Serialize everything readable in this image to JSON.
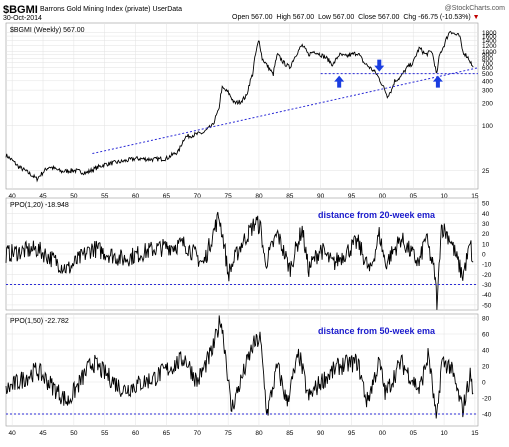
{
  "header": {
    "symbol": "$BGMI",
    "description": "Barrons Gold Mining Index (private) UserData",
    "date": "30-Oct-2014",
    "open_label": "Open",
    "open": "567.00",
    "high_label": "High",
    "high": "567.00",
    "low_label": "Low",
    "low": "567.00",
    "close_label": "Close",
    "close": "567.00",
    "chg_label": "Chg",
    "chg": "-66.75 (-10.53%)",
    "site": "@StockCharts.com"
  },
  "colors": {
    "series": "#000000",
    "trendline": "#2b2bd6",
    "annotation": "#1a1acc",
    "arrows": "#1a3de0",
    "grid": "#e2e2e2"
  },
  "chart_data": [
    {
      "type": "line",
      "title": "$BGMI (Weekly) 567.00",
      "y_scale": "log",
      "x_range": [
        1939,
        2015.5
      ],
      "ylim": [
        14,
        2400
      ],
      "y_ticks": [
        25,
        100,
        200,
        300,
        400,
        500,
        600,
        700,
        800,
        900,
        1000,
        1200,
        1400,
        1600,
        1800
      ],
      "x_ticks": [
        40,
        45,
        50,
        55,
        60,
        65,
        70,
        75,
        80,
        85,
        90,
        95,
        "00",
        "05",
        10,
        15
      ],
      "series": [
        {
          "x": [
            1939,
            1941,
            1943,
            1944,
            1946,
            1948,
            1950,
            1952,
            1955,
            1958,
            1960,
            1963,
            1965,
            1967,
            1968,
            1969.5,
            1971,
            1972.5,
            1973.5,
            1974,
            1975,
            1976,
            1977,
            1978,
            1979,
            1980,
            1980.5,
            1981,
            1982.3,
            1983,
            1984,
            1985,
            1986,
            1987,
            1988,
            1989,
            1990,
            1991,
            1992,
            1993,
            1994,
            1996,
            1997,
            1998,
            1999,
            2000,
            2000.8,
            2001.5,
            2002,
            2003,
            2004,
            2005,
            2006,
            2007,
            2008,
            2008.8,
            2009.3,
            2010,
            2011,
            2011.7,
            2012.5,
            2013,
            2014,
            2014.8
          ],
          "values": [
            40,
            28,
            22,
            19,
            28,
            24,
            25,
            23,
            30,
            33,
            36,
            35,
            36,
            45,
            70,
            75,
            80,
            100,
            160,
            320,
            280,
            200,
            210,
            250,
            500,
            1400,
            800,
            700,
            480,
            900,
            700,
            600,
            900,
            1200,
            900,
            1000,
            900,
            800,
            650,
            900,
            850,
            950,
            700,
            600,
            500,
            350,
            250,
            300,
            400,
            450,
            600,
            700,
            1100,
            900,
            1000,
            450,
            900,
            1200,
            1900,
            1700,
            1600,
            1000,
            800,
            567
          ]
        }
      ],
      "trendline": {
        "from": [
          1953,
          42
        ],
        "to": [
          2015.5,
          600
        ]
      },
      "support_line": 500,
      "arrows_at": [
        1993,
        1999.5,
        2009
      ]
    },
    {
      "type": "line",
      "title": "PPO(1,20) -18.948",
      "annotation": "distance from 20-week ema",
      "ylim": [
        -55,
        55
      ],
      "y_ticks": [
        50,
        40,
        30,
        20,
        10,
        0,
        -10,
        -20,
        -30,
        -40,
        -50
      ],
      "reference_line": -30,
      "series": [
        {
          "x": [
            1939,
            1944,
            1949,
            1953,
            1958,
            1963,
            1968,
            1971,
            1973.5,
            1974.3,
            1975,
            1977,
            1979.5,
            1980.3,
            1981,
            1983,
            1985,
            1987,
            1988,
            1990,
            1992,
            1996,
            1998,
            1999.5,
            2000.5,
            2003,
            2006,
            2007,
            2008.5,
            2008.9,
            2009.5,
            2011,
            2013,
            2014.3,
            2014.8
          ],
          "values": [
            0,
            5,
            -15,
            6,
            -5,
            5,
            10,
            -10,
            38,
            12,
            -20,
            8,
            32,
            25,
            -10,
            20,
            -15,
            25,
            -15,
            5,
            -10,
            12,
            -18,
            20,
            -10,
            15,
            -10,
            18,
            -20,
            -52,
            28,
            15,
            -22,
            10,
            -19
          ]
        }
      ]
    },
    {
      "type": "line",
      "title": "PPO(1,50) -22.782",
      "annotation": "distance from 50-week ema",
      "ylim": [
        -55,
        85
      ],
      "y_ticks": [
        80,
        60,
        40,
        20,
        0,
        -20,
        -40
      ],
      "reference_line": -40,
      "series": [
        {
          "x": [
            1939,
            1944,
            1949,
            1953,
            1958,
            1963,
            1968,
            1970,
            1972.5,
            1973.8,
            1974.6,
            1975.5,
            1977,
            1979,
            1980.2,
            1981.3,
            1983,
            1984.5,
            1986.5,
            1988,
            1990,
            1993,
            1996,
            1997.5,
            1999.5,
            2000.5,
            2003,
            2006,
            2007.5,
            2008.8,
            2009.6,
            2011,
            2013,
            2014.3,
            2014.8
          ],
          "values": [
            -10,
            15,
            -25,
            25,
            -10,
            5,
            30,
            0,
            40,
            80,
            35,
            -35,
            0,
            45,
            55,
            -40,
            20,
            -25,
            35,
            -20,
            0,
            20,
            25,
            -25,
            25,
            -15,
            25,
            -10,
            35,
            -52,
            25,
            20,
            -35,
            10,
            -23
          ]
        }
      ]
    }
  ]
}
